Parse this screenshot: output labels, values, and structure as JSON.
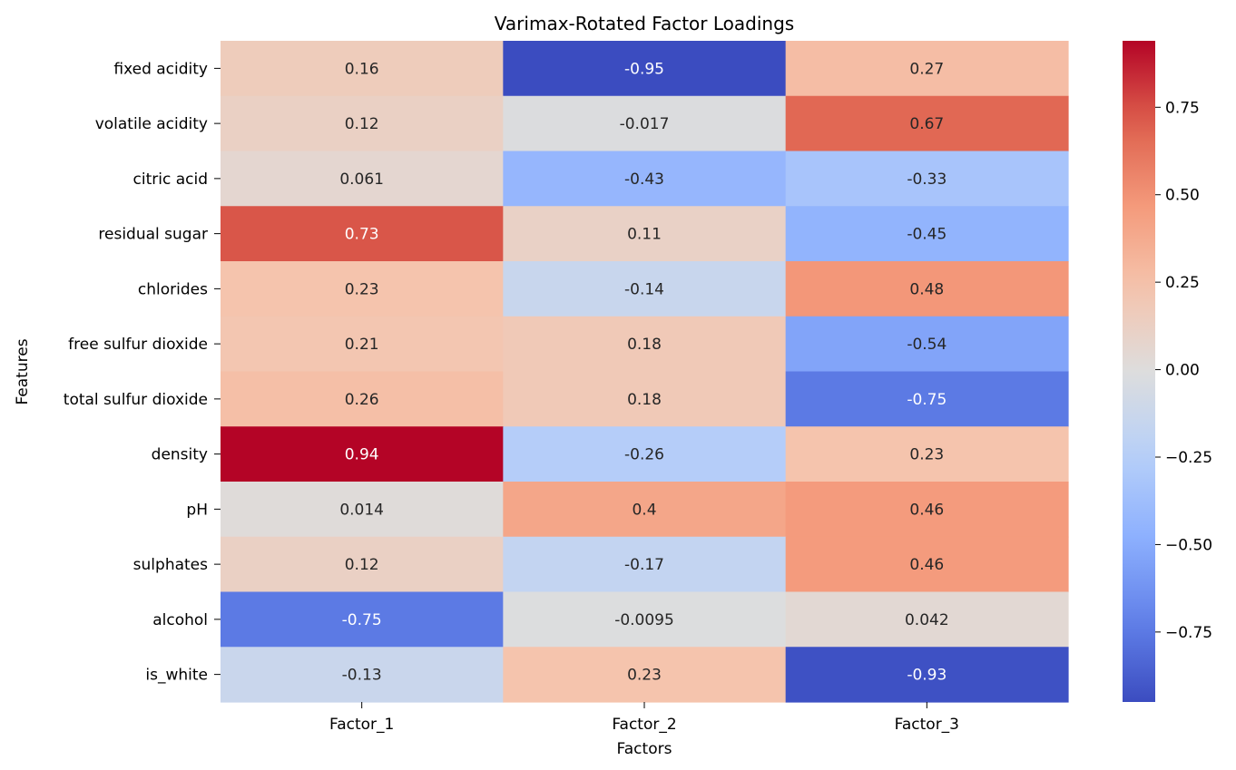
{
  "chart_data": {
    "type": "heatmap",
    "title": "Varimax-Rotated Factor Loadings",
    "xlabel": "Factors",
    "ylabel": "Features",
    "x_categories": [
      "Factor_1",
      "Factor_2",
      "Factor_3"
    ],
    "y_categories": [
      "fixed acidity",
      "volatile acidity",
      "citric acid",
      "residual sugar",
      "chlorides",
      "free sulfur dioxide",
      "total sulfur dioxide",
      "density",
      "pH",
      "sulphates",
      "alcohol",
      "is_white"
    ],
    "values": [
      [
        0.16,
        -0.95,
        0.27
      ],
      [
        0.12,
        -0.017,
        0.67
      ],
      [
        0.061,
        -0.43,
        -0.33
      ],
      [
        0.73,
        0.11,
        -0.45
      ],
      [
        0.23,
        -0.14,
        0.48
      ],
      [
        0.21,
        0.18,
        -0.54
      ],
      [
        0.26,
        0.18,
        -0.75
      ],
      [
        0.94,
        -0.26,
        0.23
      ],
      [
        0.014,
        0.4,
        0.46
      ],
      [
        0.12,
        -0.17,
        0.46
      ],
      [
        -0.75,
        -0.0095,
        0.042
      ],
      [
        -0.13,
        0.23,
        -0.93
      ]
    ],
    "value_labels": [
      [
        "0.16",
        "-0.95",
        "0.27"
      ],
      [
        "0.12",
        "-0.017",
        "0.67"
      ],
      [
        "0.061",
        "-0.43",
        "-0.33"
      ],
      [
        "0.73",
        "0.11",
        "-0.45"
      ],
      [
        "0.23",
        "-0.14",
        "0.48"
      ],
      [
        "0.21",
        "0.18",
        "-0.54"
      ],
      [
        "0.26",
        "0.18",
        "-0.75"
      ],
      [
        "0.94",
        "-0.26",
        "0.23"
      ],
      [
        "0.014",
        "0.4",
        "0.46"
      ],
      [
        "0.12",
        "-0.17",
        "0.46"
      ],
      [
        "-0.75",
        "-0.0095",
        "0.042"
      ],
      [
        "-0.13",
        "0.23",
        "-0.93"
      ]
    ],
    "colormap": "coolwarm",
    "color_range": [
      -0.95,
      0.94
    ],
    "colorbar": {
      "ticks": [
        0.75,
        0.5,
        0.25,
        0.0,
        -0.25,
        -0.5,
        -0.75
      ],
      "tick_labels": [
        "0.75",
        "0.50",
        "0.25",
        "0.00",
        "−0.25",
        "−0.50",
        "−0.75"
      ]
    }
  }
}
